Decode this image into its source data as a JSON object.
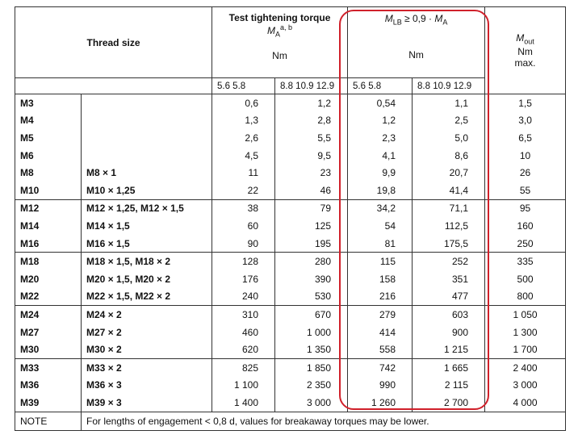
{
  "header": {
    "thread_size": "Thread size",
    "test_torque": "Test tightening torque",
    "ma_symbol": "M",
    "ma_sub": "A",
    "ma_sup": "a, b",
    "unit": "Nm",
    "mlb_symbol": "M",
    "mlb_sub": "LB",
    "mlb_rel": " ≥ 0,9 · ",
    "mlb_ma_symbol": "M",
    "mlb_ma_sub": "A",
    "mout_symbol": "M",
    "mout_sub": "out",
    "mout_max": "max.",
    "class_low": "5.6  5.8",
    "class_high": "8.8  10.9  12.9"
  },
  "groups": [
    [
      {
        "coarse": "M3",
        "t1": "0,6",
        "t2": "1,2",
        "b1": "0,54",
        "b2": "1,1",
        "out": "1,5"
      },
      {
        "coarse": "M4",
        "t1": "1,3",
        "t2": "2,8",
        "b1": "1,2",
        "b2": "2,5",
        "out": "3,0"
      },
      {
        "coarse": "M5",
        "t1": "2,6",
        "t2": "5,5",
        "b1": "2,3",
        "b2": "5,0",
        "out": "6,5"
      },
      {
        "coarse": "M6",
        "t1": "4,5",
        "t2": "9,5",
        "b1": "4,1",
        "b2": "8,6",
        "out": "10"
      },
      {
        "coarse": "M8",
        "fine": "M8 × 1",
        "t1": "11",
        "t2": "23",
        "b1": "9,9",
        "b2": "20,7",
        "out": "26"
      },
      {
        "coarse": "M10",
        "fine": "M10 × 1,25",
        "t1": "22",
        "t2": "46",
        "b1": "19,8",
        "b2": "41,4",
        "out": "55"
      }
    ],
    [
      {
        "coarse": "M12",
        "fine": "M12 × 1,25, M12 × 1,5",
        "t1": "38",
        "t2": "79",
        "b1": "34,2",
        "b2": "71,1",
        "out": "95"
      },
      {
        "coarse": "M14",
        "fine": "M14 × 1,5",
        "t1": "60",
        "t2": "125",
        "b1": "54",
        "b2": "112,5",
        "out": "160"
      },
      {
        "coarse": "M16",
        "fine": "M16 × 1,5",
        "t1": "90",
        "t2": "195",
        "b1": "81",
        "b2": "175,5",
        "out": "250"
      }
    ],
    [
      {
        "coarse": "M18",
        "fine": "M18 × 1,5, M18 × 2",
        "t1": "128",
        "t2": "280",
        "b1": "115",
        "b2": "252",
        "out": "335"
      },
      {
        "coarse": "M20",
        "fine": "M20 × 1,5, M20 × 2",
        "t1": "176",
        "t2": "390",
        "b1": "158",
        "b2": "351",
        "out": "500"
      },
      {
        "coarse": "M22",
        "fine": "M22 × 1,5, M22 × 2",
        "t1": "240",
        "t2": "530",
        "b1": "216",
        "b2": "477",
        "out": "800"
      }
    ],
    [
      {
        "coarse": "M24",
        "fine": "M24 × 2",
        "t1": "310",
        "t2": "670",
        "b1": "279",
        "b2": "603",
        "out": "1 050"
      },
      {
        "coarse": "M27",
        "fine": "M27 × 2",
        "t1": "460",
        "t2": "1 000",
        "b1": "414",
        "b2": "900",
        "out": "1 300"
      },
      {
        "coarse": "M30",
        "fine": "M30 × 2",
        "t1": "620",
        "t2": "1 350",
        "b1": "558",
        "b2": "1 215",
        "out": "1 700"
      }
    ],
    [
      {
        "coarse": "M33",
        "fine": "M33 × 2",
        "t1": "825",
        "t2": "1 850",
        "b1": "742",
        "b2": "1 665",
        "out": "2 400"
      },
      {
        "coarse": "M36",
        "fine": "M36 × 3",
        "t1": "1 100",
        "t2": "2 350",
        "b1": "990",
        "b2": "2 115",
        "out": "3 000"
      },
      {
        "coarse": "M39",
        "fine": "M39 × 3",
        "t1": "1 400",
        "t2": "3 000",
        "b1": "1 260",
        "b2": "2 700",
        "out": "4 000"
      }
    ]
  ],
  "note": {
    "label": "NOTE",
    "text": "For lengths of engagement < 0,8 d, values for breakaway torques may be lower."
  }
}
